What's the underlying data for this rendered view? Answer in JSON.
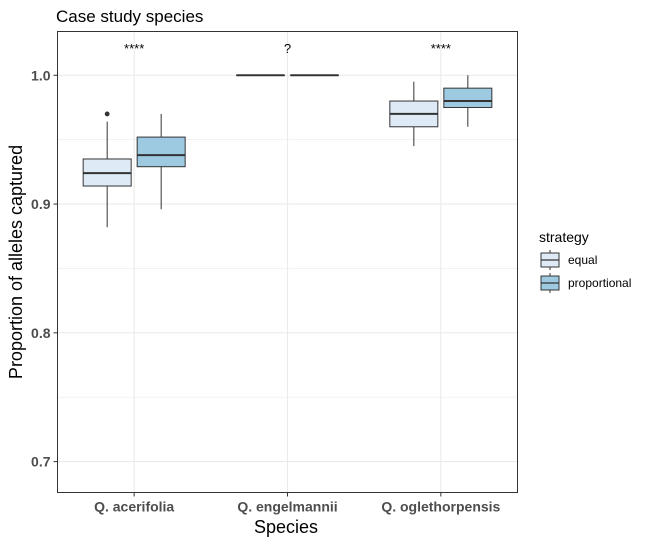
{
  "chart_data": {
    "type": "boxplot",
    "title": "Case study species",
    "xlabel": "Species",
    "ylabel": "Proportion of alleles captured",
    "categories": [
      "Q. acerifolia",
      "Q. engelmannii",
      "Q. oglethorpensis"
    ],
    "ylim": [
      0.676,
      1.034
    ],
    "yticks": [
      0.7,
      0.8,
      0.9,
      1.0
    ],
    "ytick_labels": [
      "0.7",
      "0.8",
      "0.9",
      "1.0"
    ],
    "grid": true,
    "legend": {
      "title": "strategy",
      "position": "right",
      "entries": [
        "equal",
        "proportional"
      ]
    },
    "colors": {
      "equal": "#deebf7",
      "proportional": "#9ecae1",
      "outline": "#333333",
      "panel_border": "#333333",
      "grid": "#ebebeb"
    },
    "series": [
      {
        "name": "equal",
        "boxes": [
          {
            "category": "Q. acerifolia",
            "whisker_low": 0.882,
            "q1": 0.914,
            "median": 0.924,
            "q3": 0.935,
            "whisker_high": 0.964,
            "outliers": [
              0.97
            ]
          },
          {
            "category": "Q. engelmannii",
            "whisker_low": 1.0,
            "q1": 1.0,
            "median": 1.0,
            "q3": 1.0,
            "whisker_high": 1.0,
            "outliers": []
          },
          {
            "category": "Q. oglethorpensis",
            "whisker_low": 0.945,
            "q1": 0.96,
            "median": 0.97,
            "q3": 0.98,
            "whisker_high": 0.995,
            "outliers": []
          }
        ]
      },
      {
        "name": "proportional",
        "boxes": [
          {
            "category": "Q. acerifolia",
            "whisker_low": 0.896,
            "q1": 0.929,
            "median": 0.938,
            "q3": 0.952,
            "whisker_high": 0.97,
            "outliers": []
          },
          {
            "category": "Q. engelmannii",
            "whisker_low": 1.0,
            "q1": 1.0,
            "median": 1.0,
            "q3": 1.0,
            "whisker_high": 1.0,
            "outliers": []
          },
          {
            "category": "Q. oglethorpensis",
            "whisker_low": 0.96,
            "q1": 0.975,
            "median": 0.98,
            "q3": 0.99,
            "whisker_high": 1.0,
            "outliers": []
          }
        ]
      }
    ],
    "annotations": [
      {
        "category": "Q. acerifolia",
        "text": "****"
      },
      {
        "category": "Q. engelmannii",
        "text": "?"
      },
      {
        "category": "Q. oglethorpensis",
        "text": "****"
      }
    ]
  }
}
